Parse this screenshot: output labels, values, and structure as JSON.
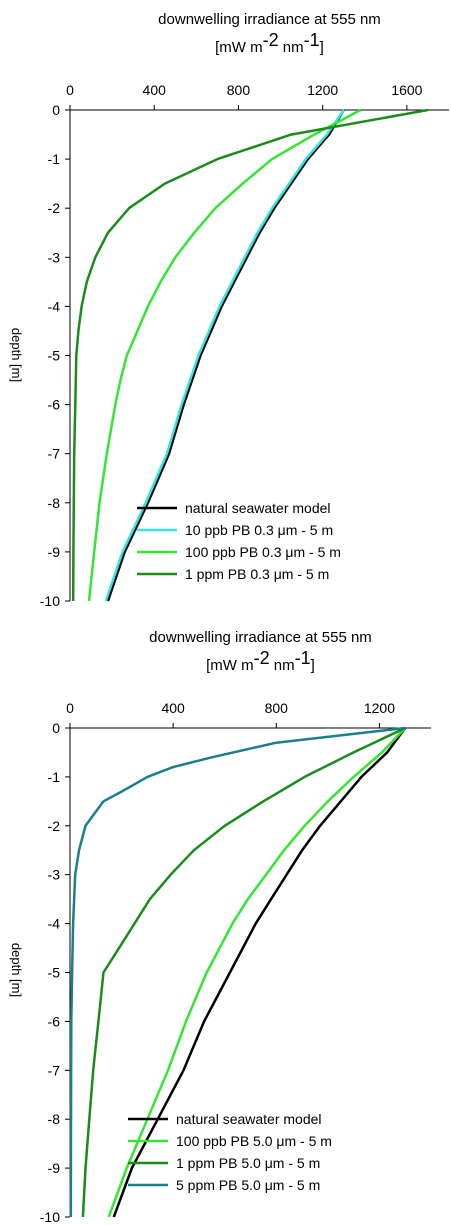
{
  "chart_data": [
    {
      "type": "line",
      "title": "downwelling irradiance at 555 nm",
      "title_units": {
        "pre": "[mW m",
        "sup1": "-2",
        "mid": " nm",
        "sup2": "-1",
        "post": "]"
      },
      "ylabel": "depth [m]",
      "xlim": [
        0,
        1800
      ],
      "ylim": [
        -10,
        0
      ],
      "x_ticks": [
        "0",
        "400",
        "800",
        "1200",
        "1600"
      ],
      "x_tick_values": [
        0,
        400,
        800,
        1200,
        1600
      ],
      "y_ticks": [
        "0",
        "-1",
        "-2",
        "-3",
        "-4",
        "-5",
        "-6",
        "-7",
        "-8",
        "-9",
        "-10"
      ],
      "y_tick_values": [
        0,
        -1,
        -2,
        -3,
        -4,
        -5,
        -6,
        -7,
        -8,
        -9,
        -10
      ],
      "grid": false,
      "legend_position": "bottom-right",
      "series": [
        {
          "name": "natural seawater model",
          "color": "#000000",
          "points": [
            [
              1300,
              0
            ],
            [
              1230,
              -0.5
            ],
            [
              1130,
              -1
            ],
            [
              1050,
              -1.5
            ],
            [
              970,
              -2
            ],
            [
              900,
              -2.5
            ],
            [
              840,
              -3
            ],
            [
              780,
              -3.5
            ],
            [
              720,
              -4
            ],
            [
              670,
              -4.5
            ],
            [
              620,
              -5
            ],
            [
              580,
              -5.5
            ],
            [
              540,
              -6
            ],
            [
              470,
              -7
            ],
            [
              370,
              -8
            ],
            [
              260,
              -9
            ],
            [
              180,
              -10
            ]
          ]
        },
        {
          "name": "10 ppb PB 0.3 μm - 5 m",
          "color": "#33e6e6",
          "points": [
            [
              1300,
              0
            ],
            [
              1220,
              -0.5
            ],
            [
              1120,
              -1
            ],
            [
              1040,
              -1.5
            ],
            [
              960,
              -2
            ],
            [
              890,
              -2.5
            ],
            [
              830,
              -3
            ],
            [
              770,
              -3.5
            ],
            [
              710,
              -4
            ],
            [
              660,
              -4.5
            ],
            [
              610,
              -5
            ],
            [
              570,
              -5.5
            ],
            [
              530,
              -6
            ],
            [
              460,
              -7
            ],
            [
              360,
              -8
            ],
            [
              250,
              -9
            ],
            [
              170,
              -10
            ]
          ]
        },
        {
          "name": "100 ppb PB 0.3 μm - 5 m",
          "color": "#33e633",
          "points": [
            [
              1380,
              0
            ],
            [
              1160,
              -0.5
            ],
            [
              960,
              -1
            ],
            [
              820,
              -1.5
            ],
            [
              690,
              -2
            ],
            [
              590,
              -2.5
            ],
            [
              500,
              -3
            ],
            [
              430,
              -3.5
            ],
            [
              370,
              -4
            ],
            [
              320,
              -4.5
            ],
            [
              270,
              -5
            ],
            [
              240,
              -5.5
            ],
            [
              215,
              -6
            ],
            [
              175,
              -7
            ],
            [
              140,
              -8
            ],
            [
              115,
              -9
            ],
            [
              90,
              -10
            ]
          ]
        },
        {
          "name": "1 ppm PB 0.3 μm - 5 m",
          "color": "#1a8c1a",
          "points": [
            [
              1700,
              0
            ],
            [
              1050,
              -0.5
            ],
            [
              700,
              -1
            ],
            [
              450,
              -1.5
            ],
            [
              280,
              -2
            ],
            [
              180,
              -2.5
            ],
            [
              120,
              -3
            ],
            [
              80,
              -3.5
            ],
            [
              55,
              -4
            ],
            [
              40,
              -4.5
            ],
            [
              30,
              -5
            ],
            [
              25,
              -6
            ],
            [
              20,
              -7
            ],
            [
              18,
              -8
            ],
            [
              16,
              -9
            ],
            [
              15,
              -10
            ]
          ]
        }
      ]
    },
    {
      "type": "line",
      "title": "downwelling irradiance at 555 nm",
      "title_units": {
        "pre": "[mW m",
        "sup1": "-2",
        "mid": " nm",
        "sup2": "-1",
        "post": "]"
      },
      "ylabel": "depth [m]",
      "xlim": [
        0,
        1400
      ],
      "ylim": [
        -10,
        0
      ],
      "x_ticks": [
        "0",
        "400",
        "800",
        "1200"
      ],
      "x_tick_values": [
        0,
        400,
        800,
        1200
      ],
      "y_ticks": [
        "0",
        "-1",
        "-2",
        "-3",
        "-4",
        "-5",
        "-6",
        "-7",
        "-8",
        "-9",
        "-10"
      ],
      "y_tick_values": [
        0,
        -1,
        -2,
        -3,
        -4,
        -5,
        -6,
        -7,
        -8,
        -9,
        -10
      ],
      "grid": false,
      "legend_position": "bottom-right",
      "series": [
        {
          "name": "natural seawater model",
          "color": "#000000",
          "points": [
            [
              1300,
              0
            ],
            [
              1230,
              -0.5
            ],
            [
              1130,
              -1
            ],
            [
              1050,
              -1.5
            ],
            [
              970,
              -2
            ],
            [
              900,
              -2.5
            ],
            [
              840,
              -3
            ],
            [
              780,
              -3.5
            ],
            [
              720,
              -4
            ],
            [
              670,
              -4.5
            ],
            [
              620,
              -5
            ],
            [
              570,
              -5.5
            ],
            [
              520,
              -6
            ],
            [
              440,
              -7
            ],
            [
              340,
              -8
            ],
            [
              240,
              -9
            ],
            [
              170,
              -10
            ]
          ]
        },
        {
          "name": "100 ppb PB 5.0 μm - 5 m",
          "color": "#33e633",
          "points": [
            [
              1300,
              0
            ],
            [
              1210,
              -0.5
            ],
            [
              1100,
              -1
            ],
            [
              1000,
              -1.5
            ],
            [
              910,
              -2
            ],
            [
              830,
              -2.5
            ],
            [
              760,
              -3
            ],
            [
              690,
              -3.5
            ],
            [
              630,
              -4
            ],
            [
              580,
              -4.5
            ],
            [
              530,
              -5
            ],
            [
              490,
              -5.5
            ],
            [
              450,
              -6
            ],
            [
              380,
              -7
            ],
            [
              300,
              -8
            ],
            [
              220,
              -9
            ],
            [
              150,
              -10
            ]
          ]
        },
        {
          "name": "1 ppm PB 5.0 μm - 5 m",
          "color": "#1a8c1a",
          "points": [
            [
              1300,
              0
            ],
            [
              1100,
              -0.5
            ],
            [
              910,
              -1
            ],
            [
              750,
              -1.5
            ],
            [
              600,
              -2
            ],
            [
              480,
              -2.5
            ],
            [
              390,
              -3
            ],
            [
              310,
              -3.5
            ],
            [
              250,
              -4
            ],
            [
              190,
              -4.5
            ],
            [
              130,
              -5
            ],
            [
              110,
              -6
            ],
            [
              90,
              -7
            ],
            [
              75,
              -8
            ],
            [
              60,
              -9
            ],
            [
              50,
              -10
            ]
          ]
        },
        {
          "name": "5 ppm PB 5.0 μm - 5 m",
          "color": "#1a7f8c",
          "points": [
            [
              1300,
              0
            ],
            [
              800,
              -0.3
            ],
            [
              550,
              -0.6
            ],
            [
              400,
              -0.8
            ],
            [
              300,
              -1
            ],
            [
              200,
              -1.3
            ],
            [
              130,
              -1.5
            ],
            [
              60,
              -2
            ],
            [
              35,
              -2.5
            ],
            [
              20,
              -3
            ],
            [
              12,
              -4
            ],
            [
              8,
              -5
            ],
            [
              5,
              -6
            ],
            [
              4,
              -8
            ],
            [
              3,
              -10
            ]
          ]
        }
      ]
    }
  ]
}
